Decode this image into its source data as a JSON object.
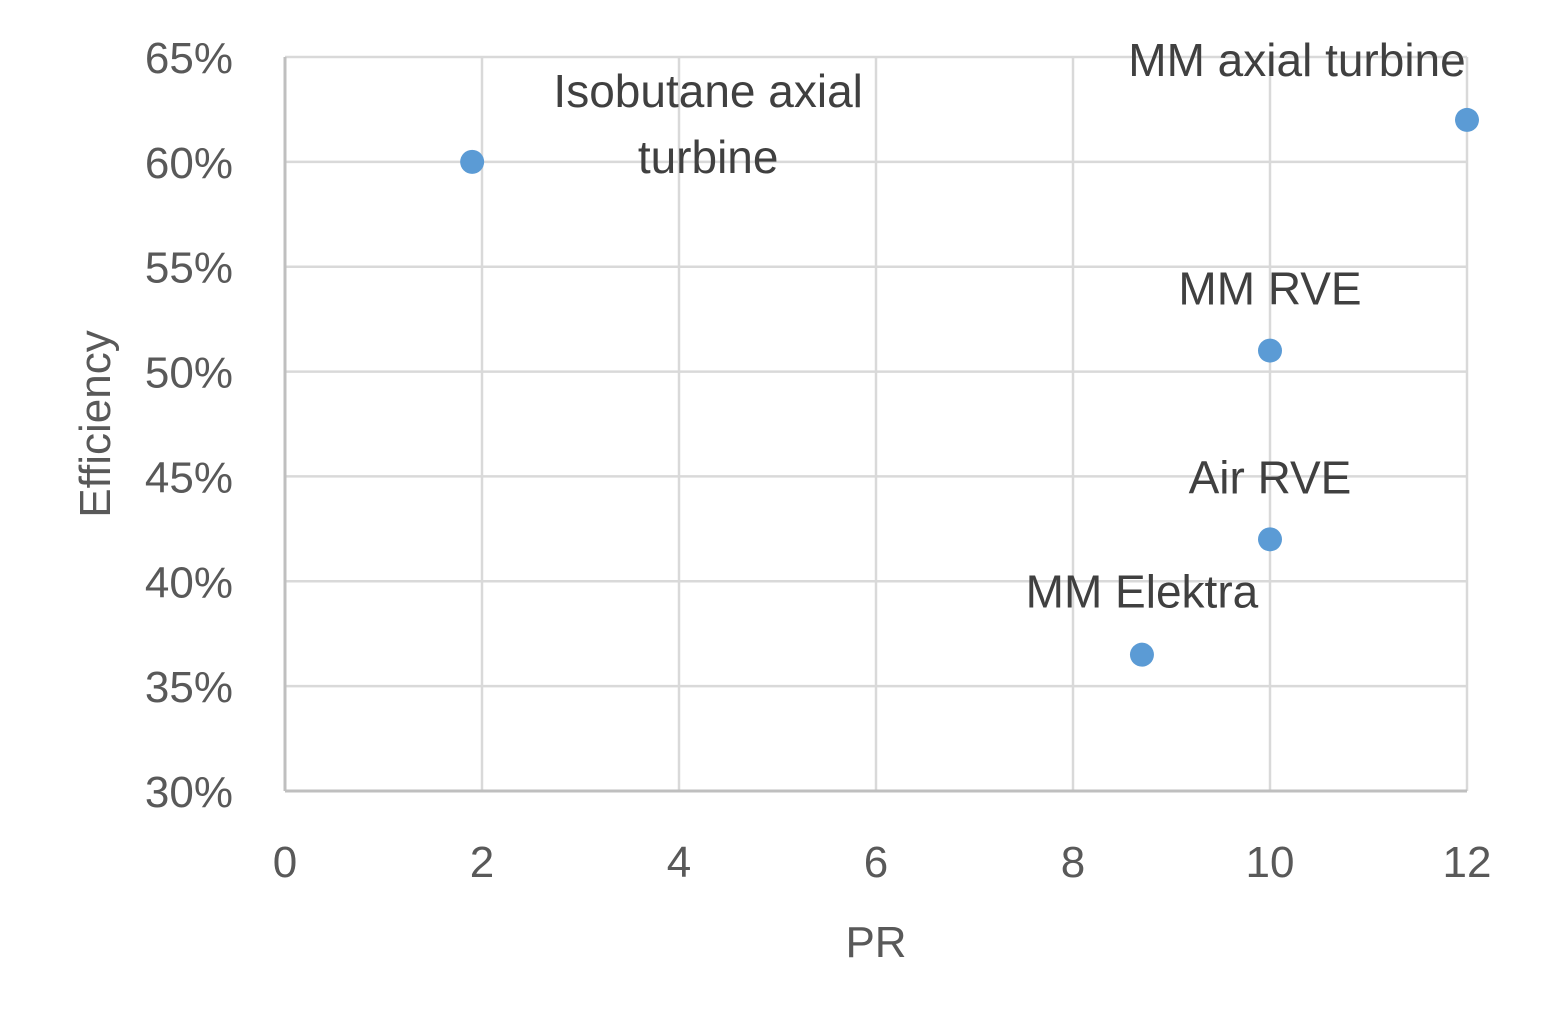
{
  "chart_data": {
    "type": "scatter",
    "title": "",
    "xlabel": "PR",
    "ylabel": "Efficiency",
    "xlim": [
      0,
      12
    ],
    "ylim": [
      0.3,
      0.65
    ],
    "xticks": [
      "0",
      "2",
      "4",
      "6",
      "8",
      "10",
      "12"
    ],
    "yticks": [
      "30%",
      "35%",
      "40%",
      "45%",
      "50%",
      "55%",
      "60%",
      "65%"
    ],
    "grid": true,
    "marker_color": "#5b9bd5",
    "points": [
      {
        "label": [
          "Isobutane axial",
          "turbine"
        ],
        "x": 1.9,
        "y": 0.6
      },
      {
        "label": [
          "MM axial turbine"
        ],
        "x": 12.0,
        "y": 0.62
      },
      {
        "label": [
          "MM RVE"
        ],
        "x": 10.0,
        "y": 0.51
      },
      {
        "label": [
          "Air RVE"
        ],
        "x": 10.0,
        "y": 0.42
      },
      {
        "label": [
          "MM Elektra"
        ],
        "x": 8.7,
        "y": 0.365
      }
    ]
  }
}
